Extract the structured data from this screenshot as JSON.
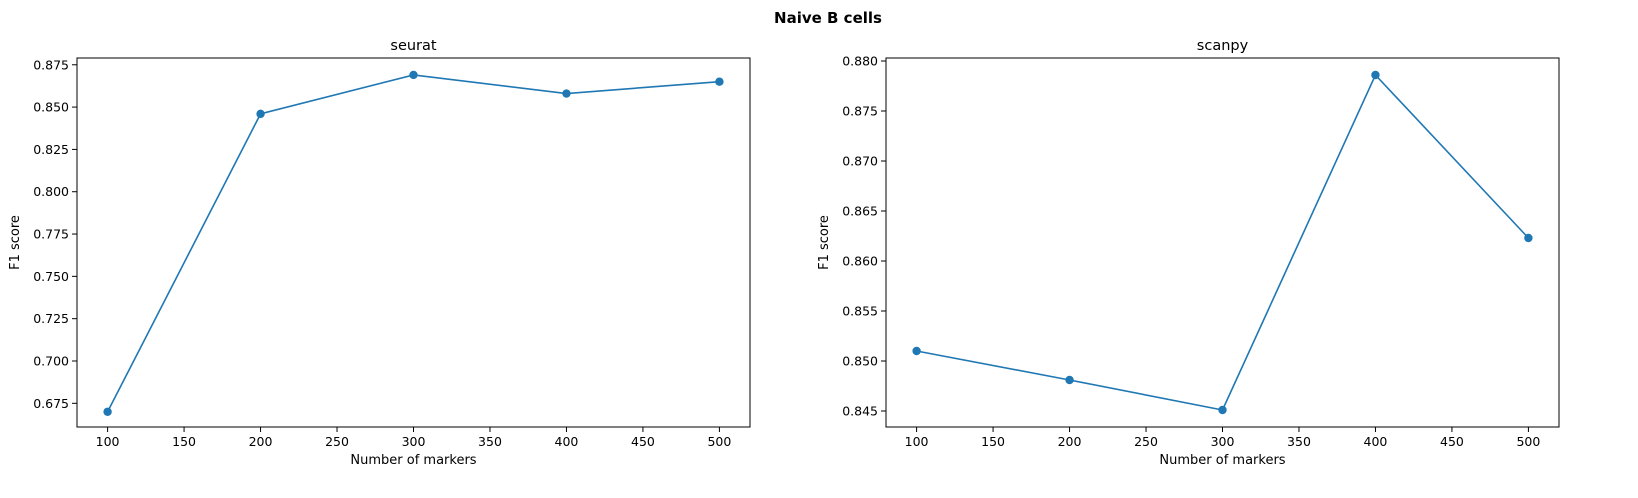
{
  "figure": {
    "suptitle": "Naive B cells"
  },
  "chart_data": [
    {
      "type": "line",
      "title": "seurat",
      "xlabel": "Number of markers",
      "ylabel": "F1 score",
      "x": [
        100,
        200,
        300,
        400,
        500
      ],
      "series": [
        {
          "values": [
            0.67,
            0.846,
            0.869,
            0.858,
            0.865
          ]
        }
      ],
      "xlim": [
        80,
        520
      ],
      "ylim": [
        0.661,
        0.879
      ],
      "xticks": [
        100,
        150,
        200,
        250,
        300,
        350,
        400,
        450,
        500
      ],
      "xtick_labels": [
        "100",
        "150",
        "200",
        "250",
        "300",
        "350",
        "400",
        "450",
        "500"
      ],
      "yticks": [
        0.675,
        0.7,
        0.725,
        0.75,
        0.775,
        0.8,
        0.825,
        0.85,
        0.875
      ],
      "ytick_labels": [
        "0.675",
        "0.700",
        "0.725",
        "0.750",
        "0.775",
        "0.800",
        "0.825",
        "0.850",
        "0.875"
      ],
      "grid": false,
      "marker": "circle",
      "color": "#1f77b4"
    },
    {
      "type": "line",
      "title": "scanpy",
      "xlabel": "Number of markers",
      "ylabel": "F1 score",
      "x": [
        100,
        200,
        300,
        400,
        500
      ],
      "series": [
        {
          "values": [
            0.851,
            0.8481,
            0.8451,
            0.8786,
            0.8623
          ]
        }
      ],
      "xlim": [
        80,
        520
      ],
      "ylim": [
        0.8434,
        0.8803
      ],
      "xticks": [
        100,
        150,
        200,
        250,
        300,
        350,
        400,
        450,
        500
      ],
      "xtick_labels": [
        "100",
        "150",
        "200",
        "250",
        "300",
        "350",
        "400",
        "450",
        "500"
      ],
      "yticks": [
        0.845,
        0.85,
        0.855,
        0.86,
        0.865,
        0.87,
        0.875,
        0.88
      ],
      "ytick_labels": [
        "0.845",
        "0.850",
        "0.855",
        "0.860",
        "0.865",
        "0.870",
        "0.875",
        "0.880"
      ],
      "grid": false,
      "marker": "circle",
      "color": "#1f77b4"
    }
  ]
}
